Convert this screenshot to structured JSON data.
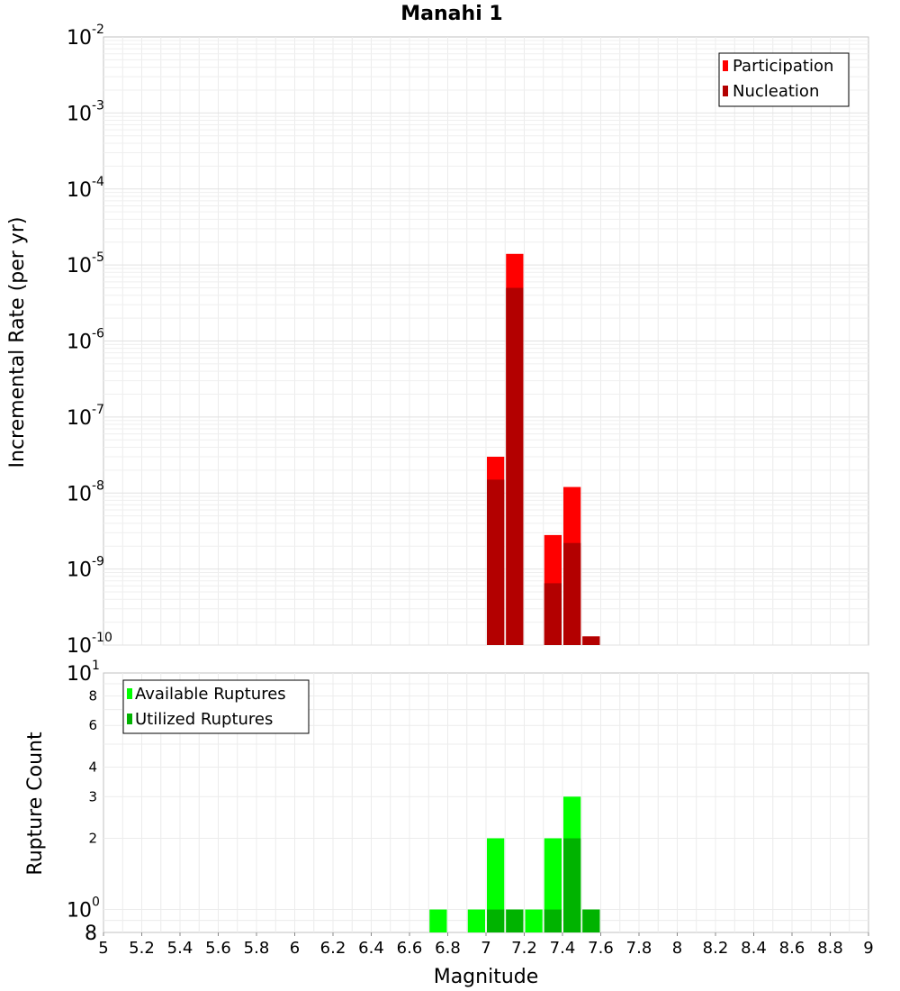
{
  "chart_data": [
    {
      "type": "bar",
      "title": "Manahi 1",
      "ylabel": "Incremental Rate (per yr)",
      "yscale": "log",
      "ylim": [
        1e-10,
        0.01
      ],
      "xlim": [
        5,
        9
      ],
      "legend_position": "top-right",
      "ytick_labels": [
        {
          "base": "10",
          "exp": "-10"
        },
        {
          "base": "10",
          "exp": "-9"
        },
        {
          "base": "10",
          "exp": "-8"
        },
        {
          "base": "10",
          "exp": "-7"
        },
        {
          "base": "10",
          "exp": "-6"
        },
        {
          "base": "10",
          "exp": "-5"
        },
        {
          "base": "10",
          "exp": "-4"
        },
        {
          "base": "10",
          "exp": "-3"
        },
        {
          "base": "10",
          "exp": "-2"
        }
      ],
      "bin_width": 0.1,
      "series": [
        {
          "name": "Participation",
          "color": "#ff0000",
          "points": [
            {
              "x": 7.05,
              "y": 3e-08
            },
            {
              "x": 7.15,
              "y": 1.4e-05
            },
            {
              "x": 7.35,
              "y": 2.8e-09
            },
            {
              "x": 7.45,
              "y": 1.2e-08
            },
            {
              "x": 7.55,
              "y": 1.3e-10
            }
          ]
        },
        {
          "name": "Nucleation",
          "color": "#b30000",
          "points": [
            {
              "x": 7.05,
              "y": 1.5e-08
            },
            {
              "x": 7.15,
              "y": 5e-06
            },
            {
              "x": 7.35,
              "y": 6.5e-10
            },
            {
              "x": 7.45,
              "y": 2.2e-09
            },
            {
              "x": 7.55,
              "y": 1.3e-10
            }
          ]
        }
      ]
    },
    {
      "type": "bar",
      "ylabel": "Rupture Count",
      "xlabel": "Magnitude",
      "yscale": "log",
      "ylim": [
        0.8,
        10
      ],
      "xlim": [
        5,
        9
      ],
      "legend_position": "top-left",
      "xticks": [
        "5",
        "5.2",
        "5.4",
        "5.6",
        "5.8",
        "6",
        "6.2",
        "6.4",
        "6.6",
        "6.8",
        "7",
        "7.2",
        "7.4",
        "7.6",
        "7.8",
        "8",
        "8.2",
        "8.4",
        "8.6",
        "8.8",
        "9"
      ],
      "ytick_minor": [
        {
          "value": 2,
          "label": "2"
        },
        {
          "value": 3,
          "label": "3"
        },
        {
          "value": 4,
          "label": "4"
        },
        {
          "value": 6,
          "label": "6"
        },
        {
          "value": 8,
          "label": "8"
        }
      ],
      "ytick_major": [
        {
          "value": 1,
          "base": "10",
          "exp": "0"
        },
        {
          "value": 10,
          "base": "10",
          "exp": "1"
        }
      ],
      "ytick_bottom": "8",
      "bin_width": 0.1,
      "series": [
        {
          "name": "Available Ruptures",
          "color": "#00ff00",
          "points": [
            {
              "x": 6.75,
              "y": 1
            },
            {
              "x": 6.95,
              "y": 1
            },
            {
              "x": 7.05,
              "y": 2
            },
            {
              "x": 7.15,
              "y": 1
            },
            {
              "x": 7.25,
              "y": 1
            },
            {
              "x": 7.35,
              "y": 2
            },
            {
              "x": 7.45,
              "y": 3
            },
            {
              "x": 7.55,
              "y": 1
            }
          ]
        },
        {
          "name": "Utilized Ruptures",
          "color": "#00b300",
          "points": [
            {
              "x": 7.05,
              "y": 1
            },
            {
              "x": 7.15,
              "y": 1
            },
            {
              "x": 7.35,
              "y": 1
            },
            {
              "x": 7.45,
              "y": 2
            },
            {
              "x": 7.55,
              "y": 1
            }
          ]
        }
      ]
    }
  ]
}
